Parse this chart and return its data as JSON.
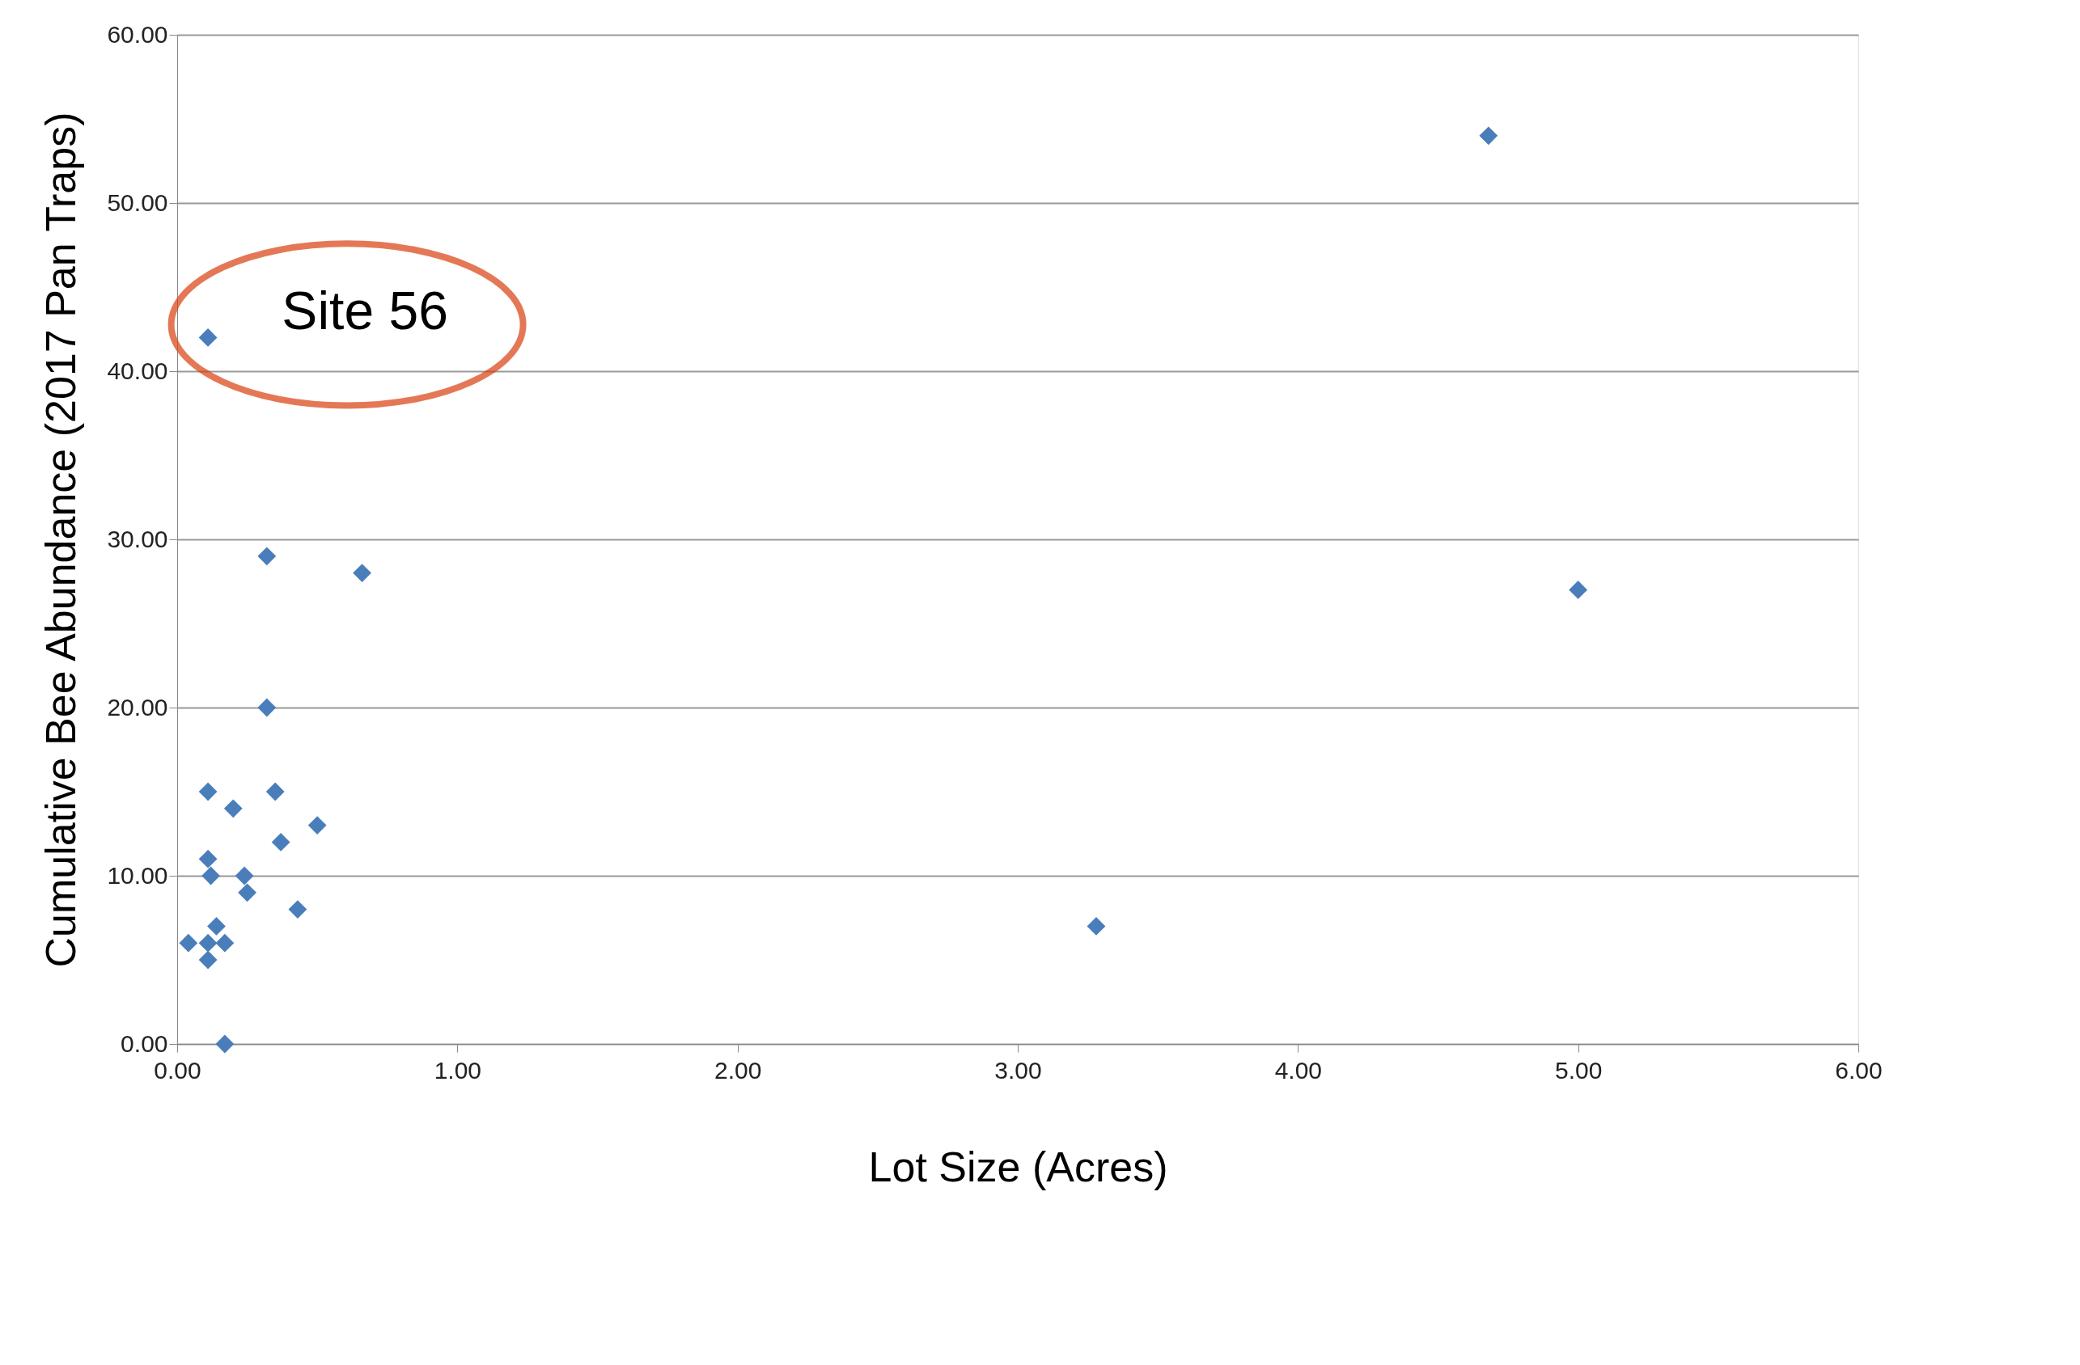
{
  "chart_data": {
    "type": "scatter",
    "xlabel": "Lot Size (Acres)",
    "ylabel": "Cumulative Bee Abundance (2017 Pan Traps)",
    "x": [
      4.68,
      0.11,
      0.32,
      0.66,
      5.0,
      0.32,
      0.11,
      0.35,
      0.2,
      0.5,
      0.37,
      0.11,
      0.12,
      0.24,
      0.25,
      0.43,
      0.14,
      3.28,
      0.04,
      0.11,
      0.17,
      0.11,
      0.17
    ],
    "series": [
      {
        "color": "#4a7ebb",
        "values": [
          54,
          42,
          29,
          28,
          27,
          20,
          15,
          15,
          14,
          13,
          12,
          11,
          10,
          10,
          9,
          8,
          7,
          7,
          6,
          6,
          6,
          5,
          0
        ]
      }
    ],
    "xlim": [
      0,
      6
    ],
    "ylim": [
      0,
      60
    ],
    "xticks": [
      {
        "value": 0,
        "label": "0.00"
      },
      {
        "value": 1,
        "label": "1.00"
      },
      {
        "value": 2,
        "label": "2.00"
      },
      {
        "value": 3,
        "label": "3.00"
      },
      {
        "value": 4,
        "label": "4.00"
      },
      {
        "value": 5,
        "label": "5.00"
      },
      {
        "value": 6,
        "label": "6.00"
      }
    ],
    "yticks": [
      {
        "value": 0,
        "label": "0.00"
      },
      {
        "value": 10,
        "label": "10.00"
      },
      {
        "value": 20,
        "label": "20.00"
      },
      {
        "value": 30,
        "label": "30.00"
      },
      {
        "value": 40,
        "label": "40.00"
      },
      {
        "value": 50,
        "label": "50.00"
      },
      {
        "value": 60,
        "label": "60.00"
      }
    ],
    "grid": "y",
    "marker": "diamond",
    "annotations": [
      {
        "text": "Site 56",
        "x": 0.11,
        "y": 42
      }
    ]
  }
}
